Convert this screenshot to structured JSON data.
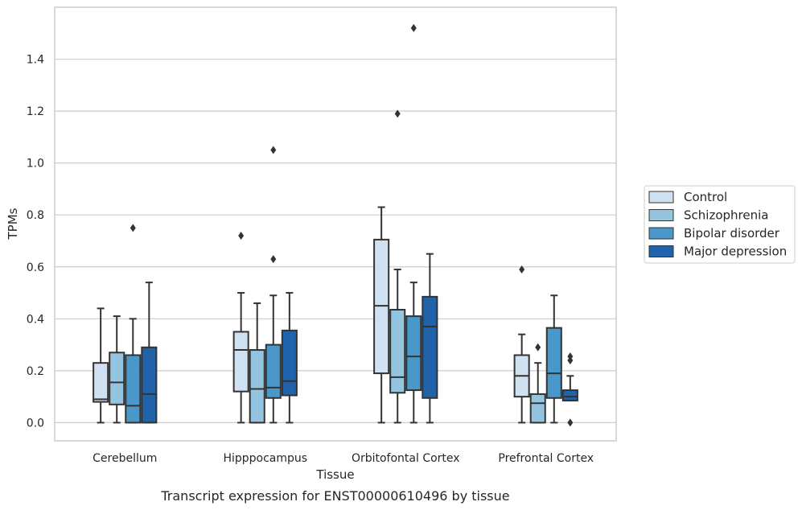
{
  "caption": "Transcript expression for ENST00000610496 by tissue",
  "chart_data": {
    "type": "box",
    "xlabel": "Tissue",
    "ylabel": "TPMs",
    "ylim": [
      -0.07,
      1.6
    ],
    "yticks": [
      0.0,
      0.2,
      0.4,
      0.6,
      0.8,
      1.0,
      1.2,
      1.4
    ],
    "ytick_labels": [
      "0.0",
      "0.2",
      "0.4",
      "0.6",
      "0.8",
      "1.0",
      "1.2",
      "1.4"
    ],
    "grid": "horizontal",
    "legend_position": "right",
    "categories": [
      "Cerebellum",
      "Hipppocampus",
      "Orbitofontal Cortex",
      "Prefrontal Cortex"
    ],
    "series": [
      {
        "name": "Control",
        "color": "#d0e1f2",
        "boxes": [
          {
            "q1": 0.08,
            "median": 0.09,
            "q3": 0.23,
            "whisker_low": 0.0,
            "whisker_high": 0.44,
            "outliers": []
          },
          {
            "q1": 0.12,
            "median": 0.28,
            "q3": 0.35,
            "whisker_low": 0.0,
            "whisker_high": 0.5,
            "outliers": [
              0.72
            ]
          },
          {
            "q1": 0.19,
            "median": 0.45,
            "q3": 0.705,
            "whisker_low": 0.0,
            "whisker_high": 0.83,
            "outliers": []
          },
          {
            "q1": 0.1,
            "median": 0.18,
            "q3": 0.26,
            "whisker_low": 0.0,
            "whisker_high": 0.34,
            "outliers": [
              0.59
            ]
          }
        ]
      },
      {
        "name": "Schizophrenia",
        "color": "#94c4df",
        "boxes": [
          {
            "q1": 0.07,
            "median": 0.155,
            "q3": 0.27,
            "whisker_low": 0.0,
            "whisker_high": 0.41,
            "outliers": []
          },
          {
            "q1": 0.0,
            "median": 0.13,
            "q3": 0.28,
            "whisker_low": 0.0,
            "whisker_high": 0.46,
            "outliers": []
          },
          {
            "q1": 0.115,
            "median": 0.175,
            "q3": 0.435,
            "whisker_low": 0.0,
            "whisker_high": 0.59,
            "outliers": [
              1.19
            ]
          },
          {
            "q1": 0.0,
            "median": 0.075,
            "q3": 0.11,
            "whisker_low": 0.0,
            "whisker_high": 0.23,
            "outliers": [
              0.29
            ]
          }
        ]
      },
      {
        "name": "Bipolar disorder",
        "color": "#4a98c9",
        "boxes": [
          {
            "q1": 0.0,
            "median": 0.065,
            "q3": 0.26,
            "whisker_low": 0.0,
            "whisker_high": 0.4,
            "outliers": [
              0.75
            ]
          },
          {
            "q1": 0.095,
            "median": 0.135,
            "q3": 0.3,
            "whisker_low": 0.0,
            "whisker_high": 0.49,
            "outliers": [
              0.63,
              1.05
            ]
          },
          {
            "q1": 0.125,
            "median": 0.255,
            "q3": 0.41,
            "whisker_low": 0.0,
            "whisker_high": 0.54,
            "outliers": [
              1.52
            ]
          },
          {
            "q1": 0.095,
            "median": 0.19,
            "q3": 0.365,
            "whisker_low": 0.0,
            "whisker_high": 0.49,
            "outliers": []
          }
        ]
      },
      {
        "name": "Major depression",
        "color": "#2163aa",
        "boxes": [
          {
            "q1": 0.0,
            "median": 0.11,
            "q3": 0.29,
            "whisker_low": 0.0,
            "whisker_high": 0.54,
            "outliers": []
          },
          {
            "q1": 0.105,
            "median": 0.16,
            "q3": 0.355,
            "whisker_low": 0.0,
            "whisker_high": 0.5,
            "outliers": []
          },
          {
            "q1": 0.095,
            "median": 0.37,
            "q3": 0.485,
            "whisker_low": 0.0,
            "whisker_high": 0.65,
            "outliers": []
          },
          {
            "q1": 0.085,
            "median": 0.1,
            "q3": 0.125,
            "whisker_low": 0.085,
            "whisker_high": 0.18,
            "outliers": [
              0.0,
              0.24,
              0.255
            ]
          }
        ]
      }
    ]
  }
}
